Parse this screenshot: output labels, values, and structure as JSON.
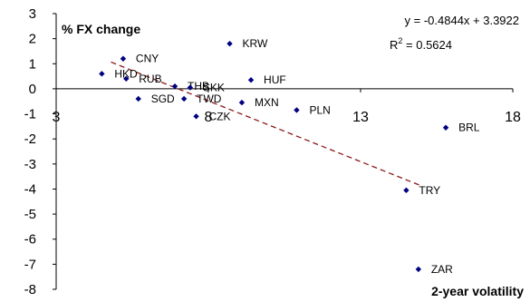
{
  "chart_data": {
    "type": "scatter",
    "ylabel": "% FX change",
    "xlabel": "2-year volatility",
    "xlim": [
      3,
      18
    ],
    "ylim": [
      -8,
      3
    ],
    "xticks": [
      "3",
      "8",
      "13",
      "18"
    ],
    "yticks": [
      "3",
      "2",
      "1",
      "0",
      "-1",
      "-2",
      "-3",
      "-4",
      "-5",
      "-6",
      "-7",
      "-8"
    ],
    "grid": false,
    "points": [
      {
        "label": "CNY",
        "x": 5.2,
        "y": 1.2
      },
      {
        "label": "HKD",
        "x": 4.5,
        "y": 0.6
      },
      {
        "label": "RUB",
        "x": 5.3,
        "y": 0.4
      },
      {
        "label": "KRW",
        "x": 8.7,
        "y": 1.8
      },
      {
        "label": "THB",
        "x": 6.9,
        "y": 0.1
      },
      {
        "label": "SKK",
        "x": 7.4,
        "y": 0.05
      },
      {
        "label": "HUF",
        "x": 9.4,
        "y": 0.35
      },
      {
        "label": "SGD",
        "x": 5.7,
        "y": -0.4
      },
      {
        "label": "TWD",
        "x": 7.2,
        "y": -0.4
      },
      {
        "label": "MXN",
        "x": 9.1,
        "y": -0.55
      },
      {
        "label": "CZK",
        "x": 7.6,
        "y": -1.1
      },
      {
        "label": "PLN",
        "x": 10.9,
        "y": -0.85
      },
      {
        "label": "BRL",
        "x": 15.8,
        "y": -1.55
      },
      {
        "label": "TRY",
        "x": 14.5,
        "y": -4.05
      },
      {
        "label": "ZAR",
        "x": 14.9,
        "y": -7.2
      }
    ],
    "trendline": {
      "slope": -0.4844,
      "intercept": 3.3922,
      "x_range": [
        4.8,
        15.0
      ],
      "color": "#8B1A1A",
      "style": "dashed"
    },
    "annotations": {
      "equation": "y = -0.4844x + 3.3922",
      "r2_prefix": "R",
      "r2_sup": "2",
      "r2_value": " = 0.5624"
    },
    "marker_color": "#000080"
  }
}
